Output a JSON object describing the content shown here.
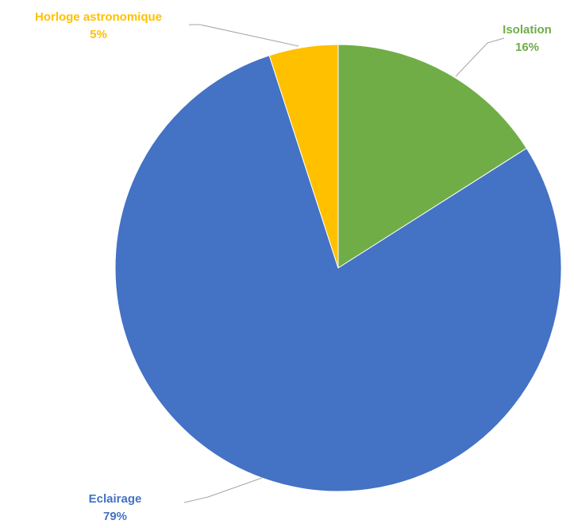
{
  "chart_data": {
    "type": "pie",
    "title": "",
    "slices": [
      {
        "label": "Isolation",
        "value": 16,
        "display": "16%",
        "color": "#70ad47"
      },
      {
        "label": "Eclairage",
        "value": 79,
        "display": "79%",
        "color": "#4472c4"
      },
      {
        "label": "Horloge astronomique",
        "value": 5,
        "display": "5%",
        "color": "#ffc000"
      }
    ],
    "start": "12 o'clock, clockwise",
    "legend": "none",
    "labels": "outside with leader lines"
  }
}
